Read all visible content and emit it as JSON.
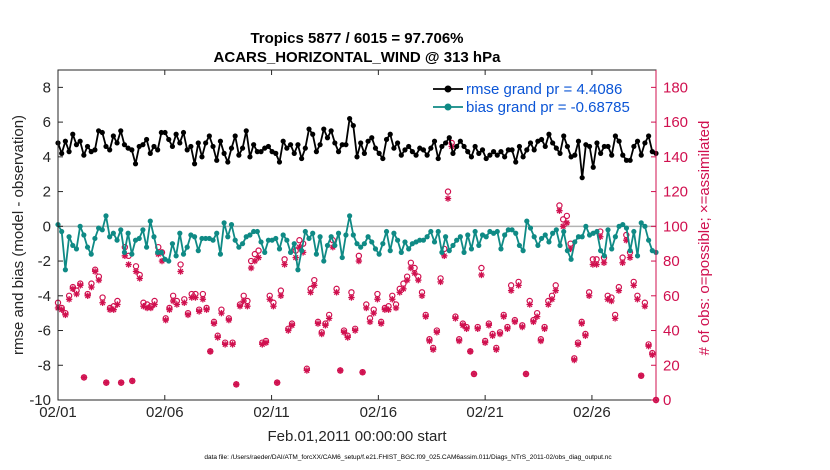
{
  "chart_data": {
    "type": "line",
    "title": "Tropics 5877 / 6015 = 97.706%",
    "subtitle": "ACARS_HORIZONTAL_WIND @ 313 hPa",
    "xlabel": "Feb.01,2011 00:00:00 start",
    "ylabel": "rmse and bias (model - observation)",
    "y2label": "# of obs: o=possible; ×=assimilated",
    "xlim": [
      0,
      28
    ],
    "ylim": [
      -10,
      9
    ],
    "y2lim": [
      0,
      190
    ],
    "xticks": [
      0,
      5,
      10,
      15,
      20,
      25
    ],
    "xtick_labels": [
      "02/01",
      "02/06",
      "02/11",
      "02/16",
      "02/21",
      "02/26"
    ],
    "yticks": [
      -10,
      -8,
      -6,
      -4,
      -2,
      0,
      2,
      4,
      6,
      8
    ],
    "y2ticks": [
      0,
      20,
      40,
      60,
      80,
      100,
      120,
      140,
      160,
      180
    ],
    "footnote": "data file: /Users/raeder/DAI/ATM_forcXX/CAM6_setup/f.e21.FHIST_BGC.f09_025.CAM6assim.011/Diags_NTrS_2011-02/obs_diag_output.nc",
    "colors": {
      "rmse": "#000000",
      "bias": "#0f8a85",
      "obs": "#d0104f",
      "legend_text": "#0b55d6",
      "zero_line": "#b3b3b3"
    },
    "series": [
      {
        "name": "rmse grand pr = 4.4086",
        "axis": "left",
        "values": [
          4.8,
          4.2,
          4.9,
          4.3,
          5.3,
          4.7,
          4.9,
          4.1,
          4.6,
          4.3,
          4.4,
          5.5,
          5.4,
          4.6,
          4.4,
          5.2,
          4.8,
          5.5,
          4.7,
          4.5,
          4.4,
          3.6,
          4.6,
          4.7,
          5.0,
          4.2,
          4.6,
          4.4,
          5.4,
          5.4,
          5.0,
          4.6,
          5.3,
          4.8,
          5.4,
          4.4,
          4.6,
          3.6,
          4.8,
          4.0,
          4.8,
          5.2,
          4.6,
          3.8,
          4.9,
          4.2,
          3.7,
          4.5,
          5.2,
          4.1,
          4.5,
          5.5,
          4.0,
          4.7,
          4.3,
          4.3,
          4.5,
          4.6,
          4.3,
          4.2,
          3.7,
          4.9,
          4.5,
          4.7,
          4.2,
          4.7,
          3.9,
          4.5,
          5.6,
          5.3,
          4.3,
          4.7,
          5.6,
          5.1,
          5.5,
          4.8,
          4.3,
          4.7,
          4.7,
          6.2,
          5.8,
          4.0,
          4.8,
          4.2,
          4.9,
          5.1,
          4.5,
          4.2,
          3.9,
          5.0,
          5.3,
          4.5,
          4.8,
          4.1,
          4.4,
          4.6,
          4.3,
          4.1,
          4.5,
          4.4,
          4.1,
          4.5,
          4.9,
          3.9,
          4.6,
          4.8,
          5.1,
          4.2,
          4.6,
          4.9,
          4.6,
          4.3,
          4.0,
          4.6,
          4.2,
          4.4,
          3.9,
          4.1,
          4.3,
          4.1,
          4.3,
          4.0,
          4.4,
          4.4,
          3.7,
          4.6,
          4.0,
          4.4,
          4.8,
          4.4,
          4.9,
          5.0,
          4.6,
          5.3,
          4.8,
          4.5,
          4.2,
          5.2,
          4.6,
          4.0,
          4.1,
          4.9,
          2.8,
          4.7,
          4.6,
          3.4,
          4.8,
          4.2,
          4.6,
          4.6,
          4.1,
          5.2,
          4.9,
          4.1,
          3.8,
          3.8,
          4.6,
          4.9,
          4.1,
          4.8,
          5.2,
          4.3,
          4.2
        ]
      },
      {
        "name": "bias grand pr = -0.68785",
        "axis": "left",
        "values": [
          0.1,
          -0.3,
          -2.5,
          -0.6,
          -1.1,
          -1.3,
          0.0,
          -0.5,
          -1.2,
          -1.6,
          -0.7,
          -0.1,
          -0.2,
          0.6,
          -0.6,
          -0.4,
          -0.8,
          -0.2,
          -1.5,
          -0.4,
          -1.6,
          -0.8,
          -0.7,
          -0.2,
          -1.2,
          0.3,
          -0.6,
          -1.5,
          -1.5,
          -1.9,
          -2.0,
          -1.0,
          -1.7,
          -0.4,
          -1.6,
          -1.2,
          -0.5,
          -0.6,
          -1.4,
          -0.7,
          -0.7,
          -0.7,
          -0.8,
          -0.4,
          -1.6,
          0.2,
          -0.6,
          0.1,
          -0.8,
          -1.2,
          -1.0,
          -0.6,
          -0.5,
          -0.3,
          -0.3,
          -0.9,
          -1.5,
          -0.8,
          -0.8,
          -0.7,
          -1.3,
          -0.5,
          -0.8,
          -1.5,
          -1.0,
          -2.5,
          -1.4,
          -0.3,
          -0.7,
          -0.4,
          -1.6,
          -0.6,
          -2.0,
          -1.1,
          -0.6,
          -1.1,
          -0.4,
          -1.8,
          -0.5,
          0.6,
          -0.5,
          -1.0,
          -1.2,
          -1.0,
          -0.6,
          -0.9,
          -1.3,
          -1.6,
          -1.0,
          -0.3,
          -1.4,
          -0.4,
          -0.8,
          -1.5,
          -0.9,
          -1.3,
          -1.0,
          -0.9,
          -0.8,
          -0.8,
          -0.6,
          -0.3,
          -0.9,
          -0.3,
          -1.5,
          -0.6,
          -1.4,
          -1.1,
          -0.8,
          -0.6,
          -1.5,
          -0.5,
          -1.3,
          -0.3,
          -1.1,
          -0.5,
          -0.6,
          -0.3,
          -0.4,
          -0.3,
          -1.3,
          -0.5,
          -0.2,
          -0.2,
          -0.4,
          -1.1,
          -1.4,
          0.3,
          -0.1,
          -0.6,
          -1.1,
          -0.7,
          -0.5,
          -0.9,
          -0.4,
          -0.2,
          -1.1,
          -0.3,
          -1.4,
          -1.9,
          -0.9,
          -0.6,
          -0.6,
          0.0,
          -0.5,
          -0.4,
          -0.3,
          -1.4,
          -1.7,
          -0.2,
          -1.3,
          -0.6,
          0.0,
          0.1,
          -0.1,
          -1.4,
          -0.3,
          -1.7,
          0.2,
          0.0,
          -0.8,
          -1.4,
          -1.5
        ]
      },
      {
        "name": "obs possible",
        "axis": "right",
        "values": [
          56,
          53,
          50,
          60,
          65,
          63,
          67,
          13,
          61,
          67,
          75,
          71,
          59,
          10,
          53,
          54,
          57,
          10,
          88,
          83,
          11,
          77,
          72,
          56,
          55,
          54,
          57,
          88,
          85,
          47,
          53,
          60,
          57,
          78,
          58,
          50,
          61,
          61,
          52,
          61,
          53,
          28,
          45,
          37,
          52,
          33,
          47,
          33,
          9,
          55,
          60,
          57,
          80,
          84,
          86,
          33,
          34,
          60,
          56,
          10,
          63,
          81,
          41,
          44,
          86,
          92,
          90,
          18,
          64,
          69,
          45,
          39,
          44,
          49,
          92,
          64,
          17,
          40,
          37,
          62,
          41,
          83,
          16,
          55,
          47,
          52,
          61,
          45,
          53,
          54,
          60,
          55,
          64,
          67,
          71,
          79,
          76,
          71,
          62,
          49,
          35,
          30,
          40,
          70,
          87,
          120,
          148,
          48,
          35,
          44,
          42,
          28,
          15,
          42,
          76,
          34,
          44,
          38,
          30,
          39,
          49,
          42,
          66,
          46,
          68,
          43,
          15,
          57,
          46,
          50,
          35,
          42,
          57,
          60,
          66,
          112,
          104,
          106,
          90,
          24,
          33,
          45,
          38,
          62,
          81,
          81,
          97,
          82,
          60,
          59,
          49,
          65,
          82,
          95,
          85,
          68,
          60,
          14,
          56,
          32,
          27,
          0
        ],
        "marker": "o"
      },
      {
        "name": "obs assimilated",
        "axis": "right",
        "values": [
          53,
          52,
          49,
          58,
          64,
          61,
          66,
          13,
          60,
          65,
          74,
          69,
          56,
          10,
          52,
          52,
          55,
          10,
          83,
          78,
          11,
          74,
          70,
          54,
          53,
          53,
          55,
          84,
          80,
          46,
          52,
          57,
          55,
          74,
          56,
          49,
          59,
          59,
          51,
          58,
          52,
          28,
          44,
          36,
          50,
          32,
          46,
          32,
          9,
          54,
          57,
          54,
          76,
          80,
          82,
          32,
          33,
          58,
          54,
          10,
          60,
          78,
          40,
          43,
          82,
          88,
          85,
          17,
          62,
          66,
          44,
          38,
          43,
          47,
          88,
          62,
          17,
          39,
          36,
          59,
          40,
          80,
          16,
          53,
          45,
          50,
          58,
          44,
          52,
          52,
          58,
          53,
          62,
          64,
          69,
          76,
          73,
          69,
          60,
          48,
          34,
          29,
          39,
          68,
          83,
          116,
          146,
          47,
          34,
          43,
          41,
          28,
          15,
          41,
          72,
          33,
          43,
          37,
          29,
          38,
          48,
          41,
          63,
          45,
          66,
          42,
          15,
          55,
          45,
          48,
          34,
          41,
          55,
          58,
          63,
          109,
          100,
          102,
          87,
          23,
          32,
          44,
          37,
          60,
          78,
          78,
          94,
          79,
          58,
          57,
          47,
          63,
          79,
          92,
          82,
          66,
          58,
          14,
          54,
          31,
          26,
          0
        ],
        "marker": "x"
      }
    ]
  }
}
